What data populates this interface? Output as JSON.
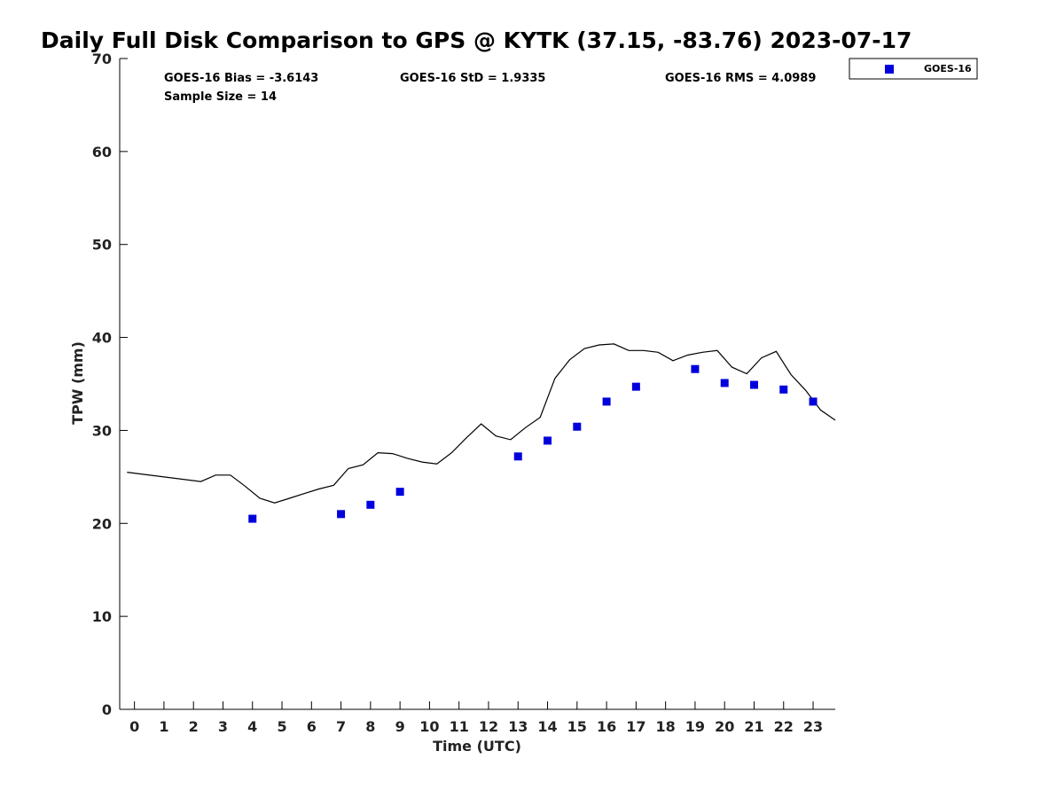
{
  "chart_data": {
    "type": "scatter",
    "title": "Daily Full Disk Comparison to GPS @ KYTK (37.15, -83.76) 2023-07-17",
    "xlabel": "Time (UTC)",
    "ylabel": "TPW (mm)",
    "xlim": [
      -0.5,
      23.75
    ],
    "ylim": [
      0,
      70
    ],
    "x_ticks": [
      "0",
      "1",
      "2",
      "3",
      "4",
      "5",
      "6",
      "7",
      "8",
      "9",
      "10",
      "11",
      "12",
      "13",
      "14",
      "15",
      "16",
      "17",
      "18",
      "19",
      "20",
      "21",
      "22",
      "23"
    ],
    "y_ticks": [
      "0",
      "10",
      "20",
      "30",
      "40",
      "50",
      "60",
      "70"
    ],
    "grid": false,
    "legend_position": "outside-top-right",
    "stats": {
      "bias": "GOES-16 Bias = -3.6143",
      "std": "GOES-16 StD = 1.9335",
      "rms": "GOES-16 RMS = 4.0989",
      "sample_size": "Sample Size = 14"
    },
    "series": [
      {
        "name": "GOES-16",
        "kind": "marker",
        "color": "#0000dd",
        "marker": "square",
        "x": [
          4,
          7,
          8,
          9,
          13,
          14,
          15,
          16,
          17,
          19,
          20,
          21,
          22,
          23
        ],
        "y": [
          20.5,
          21.0,
          22.0,
          23.4,
          27.2,
          28.9,
          30.4,
          33.1,
          34.7,
          36.6,
          35.1,
          34.9,
          34.4,
          33.1
        ]
      },
      {
        "kind": "line",
        "color": "#000000",
        "x": [
          -0.25,
          2.25,
          2.75,
          3.25,
          3.75,
          4.25,
          4.75,
          5.25,
          5.75,
          6.25,
          6.75,
          7.25,
          7.75,
          8.25,
          8.75,
          9.25,
          9.75,
          10.25,
          10.75,
          11.25,
          11.75,
          12.25,
          12.75,
          13.25,
          13.75,
          14.25,
          14.75,
          15.25,
          15.75,
          16.25,
          16.75,
          17.25,
          17.75,
          18.25,
          18.75,
          19.25,
          19.75,
          20.25,
          20.75,
          21.25,
          21.75,
          22.25,
          22.75,
          23.25,
          23.75
        ],
        "y": [
          25.5,
          24.5,
          25.2,
          25.2,
          24.0,
          22.7,
          22.2,
          22.7,
          23.2,
          23.7,
          24.1,
          25.9,
          26.3,
          27.6,
          27.5,
          27.0,
          26.6,
          26.4,
          27.6,
          29.2,
          30.7,
          29.4,
          29.0,
          30.3,
          31.4,
          35.6,
          37.6,
          38.8,
          39.2,
          39.3,
          38.6,
          38.6,
          38.4,
          37.5,
          38.1,
          38.4,
          38.6,
          36.8,
          36.1,
          37.8,
          38.5,
          36.0,
          34.3,
          32.2,
          31.1
        ]
      }
    ]
  }
}
